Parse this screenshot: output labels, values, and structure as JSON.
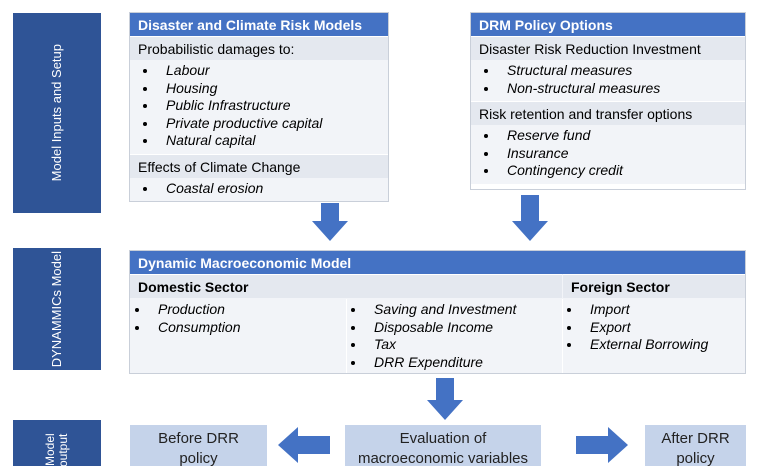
{
  "stages": [
    "Model Inputs and Setup",
    "DYNAMMICs Model",
    "Model output"
  ],
  "risk_models": {
    "title": "Disaster and Climate Risk Models",
    "sections": [
      {
        "heading": "Probabilistic damages to:",
        "items": [
          "Labour",
          "Housing",
          "Public Infrastructure",
          "Private productive capital",
          "Natural capital"
        ]
      },
      {
        "heading": "Effects of Climate Change",
        "items": [
          "Coastal erosion"
        ]
      }
    ]
  },
  "policy_options": {
    "title": "DRM Policy Options",
    "sections": [
      {
        "heading": "Disaster Risk Reduction Investment",
        "items": [
          "Structural measures",
          "Non-structural measures"
        ]
      },
      {
        "heading": "Risk retention and transfer options",
        "items": [
          "Reserve fund",
          "Insurance",
          "Contingency credit"
        ]
      }
    ]
  },
  "macro_model": {
    "title": "Dynamic Macroeconomic Model",
    "domestic": {
      "heading": "Domestic Sector",
      "columns": [
        [
          "Production",
          "Consumption"
        ],
        [
          "Saving and Investment",
          "Disposable Income",
          "Tax",
          "DRR Expenditure"
        ]
      ]
    },
    "foreign": {
      "heading": "Foreign Sector",
      "items": [
        "Import",
        "Export",
        "External Borrowing"
      ]
    }
  },
  "outputs": {
    "before": "Before DRR policy",
    "evaluation": "Evaluation of macroeconomic variables",
    "after": "After DRR policy"
  }
}
